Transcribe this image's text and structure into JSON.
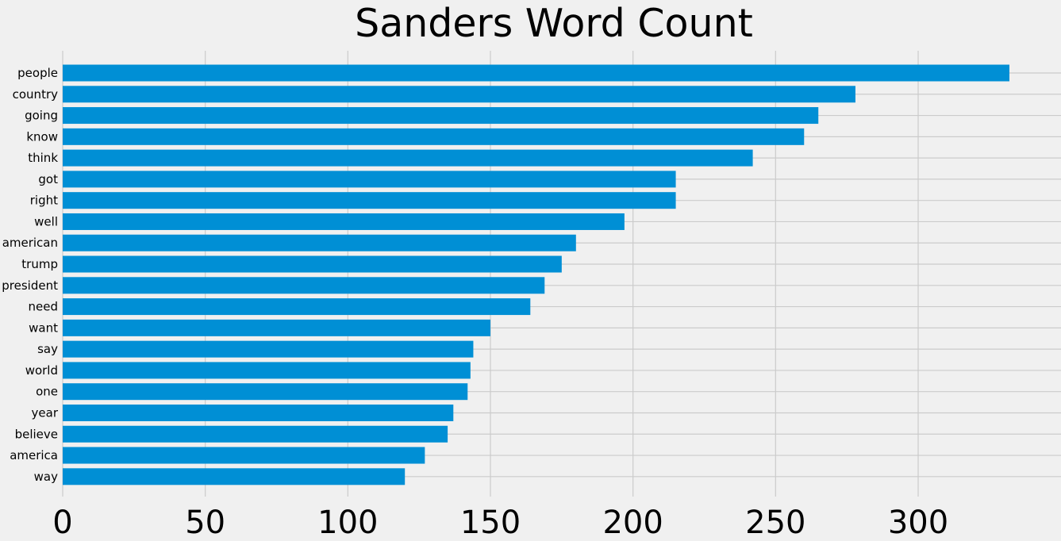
{
  "chart_data": {
    "type": "bar",
    "orientation": "horizontal",
    "title": "Sanders Word Count",
    "xlabel": "",
    "ylabel": "",
    "categories": [
      "people",
      "country",
      "going",
      "know",
      "think",
      "got",
      "right",
      "well",
      "american",
      "trump",
      "president",
      "need",
      "want",
      "say",
      "world",
      "one",
      "year",
      "believe",
      "america",
      "way"
    ],
    "values": [
      332,
      278,
      265,
      260,
      242,
      215,
      215,
      197,
      180,
      175,
      169,
      164,
      150,
      144,
      143,
      142,
      137,
      135,
      127,
      120
    ],
    "xlim": [
      0,
      350
    ],
    "xticks": [
      0,
      50,
      100,
      150,
      200,
      250,
      300
    ],
    "grid": true,
    "colors": {
      "bar": "#008fd5",
      "background": "#f0f0f0",
      "grid": "#cbcbcb",
      "text": "#000000"
    }
  }
}
